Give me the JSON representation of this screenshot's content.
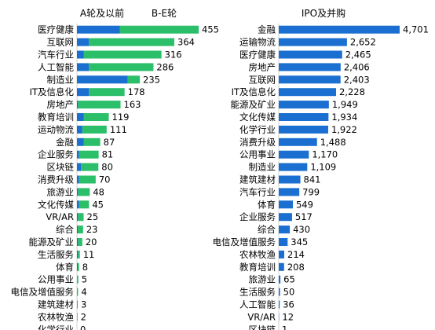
{
  "chart_data": [
    {
      "type": "bar",
      "orientation": "horizontal",
      "stacked": true,
      "headers": [
        "A轮及以前",
        "B-E轮"
      ],
      "categories": [
        "医疗健康",
        "互联网",
        "汽车行业",
        "人工智能",
        "制造业",
        "IT及信息化",
        "房地产",
        "教育培训",
        "运动物流",
        "金融",
        "企业服务",
        "区块链",
        "消费升级",
        "旅游业",
        "文化传媒",
        "VR/AR",
        "综合",
        "能源及矿业",
        "生活服务",
        "体育",
        "公用事业",
        "电信及增值服务",
        "建筑建材",
        "农林牧渔",
        "化学行业"
      ],
      "series": [
        {
          "name": "A轮及以前",
          "color": "#1a6fd0",
          "values": [
            160,
            45,
            25,
            45,
            190,
            45,
            4,
            25,
            20,
            25,
            8,
            15,
            8,
            4,
            8,
            4,
            3,
            4,
            4,
            3,
            1,
            1,
            1,
            1,
            0
          ]
        },
        {
          "name": "B-E轮",
          "color": "#2bbf6a",
          "values": [
            295,
            319,
            291,
            241,
            45,
            133,
            159,
            94,
            91,
            62,
            73,
            65,
            62,
            44,
            37,
            21,
            20,
            16,
            7,
            5,
            4,
            3,
            2,
            1,
            0
          ]
        }
      ],
      "totals": [
        455,
        364,
        316,
        286,
        235,
        178,
        163,
        119,
        111,
        87,
        81,
        80,
        70,
        48,
        45,
        25,
        23,
        20,
        11,
        8,
        5,
        4,
        3,
        2,
        0
      ],
      "total_labels": [
        "455",
        "364",
        "316",
        "286",
        "235",
        "178",
        "163",
        "119",
        "111",
        "87",
        "81",
        "80",
        "70",
        "48",
        "45",
        "25",
        "23",
        "20",
        "11",
        "8",
        "5",
        "4",
        "3",
        "2",
        "0"
      ],
      "xlim": [
        0,
        455
      ],
      "grid": false,
      "legend": "none"
    },
    {
      "type": "bar",
      "orientation": "horizontal",
      "headers": [
        "IPO及并购"
      ],
      "categories": [
        "金融",
        "运输物流",
        "医疗健康",
        "房地产",
        "互联网",
        "IT及信息化",
        "能源及矿业",
        "文化传媒",
        "化学行业",
        "消费升级",
        "公用事业",
        "制造业",
        "建筑建材",
        "汽车行业",
        "体育",
        "企业服务",
        "综合",
        "电信及增值服务",
        "农林牧渔",
        "教育培训",
        "旅游业",
        "生活服务",
        "人工智能",
        "VR/AR",
        "区块链"
      ],
      "series": [
        {
          "color": "#1a6fd0",
          "values": [
            4701,
            2652,
            2465,
            2406,
            2403,
            2228,
            1949,
            1934,
            1922,
            1488,
            1170,
            1109,
            841,
            799,
            549,
            517,
            430,
            345,
            214,
            208,
            65,
            50,
            36,
            12,
            1
          ]
        }
      ],
      "value_labels": [
        "4,701",
        "2,652",
        "2,465",
        "2,406",
        "2,403",
        "2,228",
        "1,949",
        "1,934",
        "1,922",
        "1,488",
        "1,170",
        "1,109",
        "841",
        "799",
        "549",
        "517",
        "430",
        "345",
        "214",
        "208",
        "65",
        "50",
        "36",
        "12",
        "1"
      ],
      "xlim": [
        0,
        4701
      ],
      "grid": false,
      "legend": "none"
    }
  ]
}
